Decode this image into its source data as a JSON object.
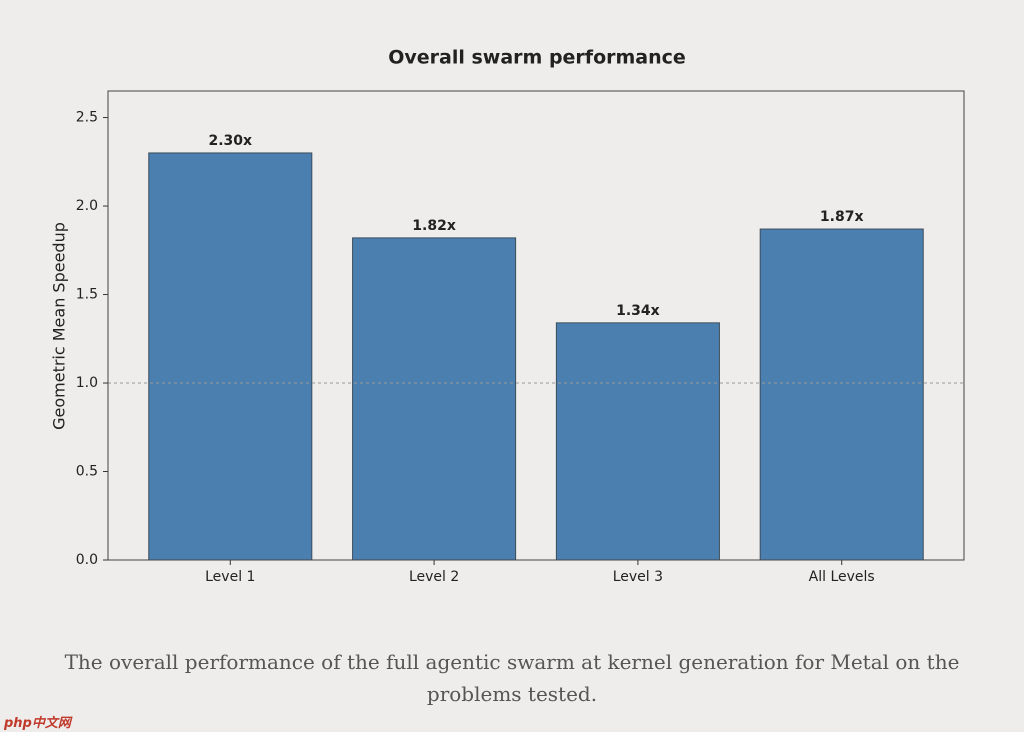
{
  "chart_data": {
    "type": "bar",
    "title": "Overall swarm performance",
    "y_label": "Geometric Mean Speedup",
    "categories": [
      "Level 1",
      "Level 2",
      "Level 3",
      "All Levels"
    ],
    "values": [
      2.3,
      1.82,
      1.34,
      1.87
    ],
    "value_labels": [
      "2.30x",
      "1.82x",
      "1.34x",
      "1.87x"
    ],
    "color": "#4a7fb0",
    "ylim": [
      0,
      2.65
    ],
    "yticks": [
      {
        "value": 0,
        "label": "0.0"
      },
      0.5,
      {
        "value": 1,
        "label": "1.0"
      },
      1.5,
      {
        "value": 2,
        "label": "2.0"
      },
      2.5
    ],
    "reference_line": 1,
    "grid": false
  },
  "caption": "The overall performance of the full agentic swarm at kernel generation for Metal on the problems tested.",
  "watermark": "php中文网"
}
